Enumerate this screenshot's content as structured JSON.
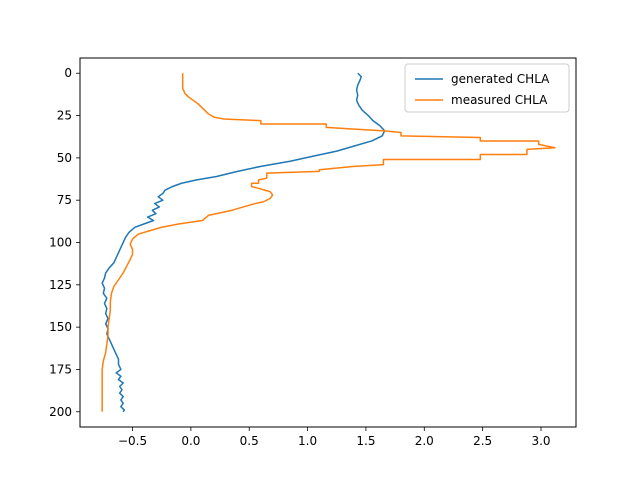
{
  "chart_data": {
    "type": "line",
    "title": "",
    "xlabel": "",
    "ylabel": "",
    "xlim": [
      -0.95,
      3.3
    ],
    "ylim": [
      209,
      -9
    ],
    "y_inverted": true,
    "xticks": [
      -0.5,
      0.0,
      0.5,
      1.0,
      1.5,
      2.0,
      2.5,
      3.0
    ],
    "xtick_labels": [
      "−0.5",
      "0.0",
      "0.5",
      "1.0",
      "1.5",
      "2.0",
      "2.5",
      "3.0"
    ],
    "yticks": [
      0,
      25,
      50,
      75,
      100,
      125,
      150,
      175,
      200
    ],
    "ytick_labels": [
      "0",
      "25",
      "50",
      "75",
      "100",
      "125",
      "150",
      "175",
      "200"
    ],
    "grid": false,
    "legend_position": "upper-right",
    "series": [
      {
        "name": "generated CHLA",
        "color": "#1f77b4",
        "points": [
          [
            1.43,
            0
          ],
          [
            1.46,
            2
          ],
          [
            1.45,
            4
          ],
          [
            1.43,
            7
          ],
          [
            1.42,
            10
          ],
          [
            1.43,
            13
          ],
          [
            1.42,
            16
          ],
          [
            1.44,
            19
          ],
          [
            1.47,
            22
          ],
          [
            1.52,
            25
          ],
          [
            1.56,
            28
          ],
          [
            1.62,
            31
          ],
          [
            1.66,
            34
          ],
          [
            1.64,
            37
          ],
          [
            1.55,
            40
          ],
          [
            1.4,
            43
          ],
          [
            1.25,
            46
          ],
          [
            1.05,
            49
          ],
          [
            0.85,
            52
          ],
          [
            0.6,
            55
          ],
          [
            0.4,
            58
          ],
          [
            0.22,
            61
          ],
          [
            0.05,
            63
          ],
          [
            -0.08,
            65
          ],
          [
            -0.16,
            67
          ],
          [
            -0.22,
            69
          ],
          [
            -0.24,
            71
          ],
          [
            -0.28,
            73
          ],
          [
            -0.24,
            75
          ],
          [
            -0.31,
            77
          ],
          [
            -0.27,
            79
          ],
          [
            -0.33,
            81
          ],
          [
            -0.3,
            83
          ],
          [
            -0.37,
            85
          ],
          [
            -0.32,
            87
          ],
          [
            -0.4,
            89
          ],
          [
            -0.48,
            91
          ],
          [
            -0.53,
            94
          ],
          [
            -0.56,
            97
          ],
          [
            -0.58,
            100
          ],
          [
            -0.6,
            103
          ],
          [
            -0.62,
            106
          ],
          [
            -0.64,
            109
          ],
          [
            -0.66,
            112
          ],
          [
            -0.7,
            115
          ],
          [
            -0.73,
            118
          ],
          [
            -0.74,
            121
          ],
          [
            -0.76,
            124
          ],
          [
            -0.74,
            127
          ],
          [
            -0.75,
            130
          ],
          [
            -0.72,
            133
          ],
          [
            -0.74,
            136
          ],
          [
            -0.72,
            139
          ],
          [
            -0.73,
            142
          ],
          [
            -0.71,
            145
          ],
          [
            -0.73,
            148
          ],
          [
            -0.71,
            151
          ],
          [
            -0.72,
            154
          ],
          [
            -0.7,
            157
          ],
          [
            -0.68,
            160
          ],
          [
            -0.66,
            163
          ],
          [
            -0.64,
            166
          ],
          [
            -0.62,
            169
          ],
          [
            -0.62,
            172
          ],
          [
            -0.6,
            175
          ],
          [
            -0.64,
            177
          ],
          [
            -0.6,
            179
          ],
          [
            -0.62,
            181
          ],
          [
            -0.58,
            183
          ],
          [
            -0.61,
            185
          ],
          [
            -0.59,
            187
          ],
          [
            -0.61,
            189
          ],
          [
            -0.58,
            191
          ],
          [
            -0.6,
            193
          ],
          [
            -0.58,
            195
          ],
          [
            -0.6,
            197
          ],
          [
            -0.57,
            199
          ],
          [
            -0.58,
            200
          ]
        ]
      },
      {
        "name": "measured CHLA",
        "color": "#ff7f0e",
        "points": [
          [
            -0.07,
            0
          ],
          [
            -0.07,
            9
          ],
          [
            -0.05,
            12
          ],
          [
            -0.02,
            14
          ],
          [
            0.02,
            16
          ],
          [
            0.06,
            18
          ],
          [
            0.09,
            20
          ],
          [
            0.12,
            22
          ],
          [
            0.15,
            24
          ],
          [
            0.2,
            26
          ],
          [
            0.28,
            27
          ],
          [
            0.6,
            28
          ],
          [
            0.6,
            30
          ],
          [
            1.16,
            30
          ],
          [
            1.16,
            32
          ],
          [
            1.4,
            33
          ],
          [
            1.65,
            34
          ],
          [
            1.8,
            35
          ],
          [
            1.8,
            37
          ],
          [
            2.48,
            38
          ],
          [
            2.48,
            40
          ],
          [
            2.98,
            40
          ],
          [
            2.98,
            42
          ],
          [
            3.12,
            44
          ],
          [
            2.88,
            45
          ],
          [
            2.88,
            48
          ],
          [
            2.48,
            48
          ],
          [
            2.48,
            51
          ],
          [
            1.65,
            51
          ],
          [
            1.65,
            54
          ],
          [
            1.4,
            55
          ],
          [
            1.1,
            57
          ],
          [
            1.1,
            58
          ],
          [
            0.65,
            59
          ],
          [
            0.65,
            62
          ],
          [
            0.58,
            63
          ],
          [
            0.58,
            65
          ],
          [
            0.52,
            65
          ],
          [
            0.52,
            67
          ],
          [
            0.58,
            68
          ],
          [
            0.68,
            70
          ],
          [
            0.7,
            72
          ],
          [
            0.68,
            74
          ],
          [
            0.62,
            76
          ],
          [
            0.55,
            77
          ],
          [
            0.45,
            79
          ],
          [
            0.35,
            81
          ],
          [
            0.15,
            84
          ],
          [
            0.1,
            87
          ],
          [
            -0.1,
            89
          ],
          [
            -0.25,
            91
          ],
          [
            -0.35,
            93
          ],
          [
            -0.45,
            95
          ],
          [
            -0.5,
            98
          ],
          [
            -0.52,
            101
          ],
          [
            -0.5,
            104
          ],
          [
            -0.5,
            107
          ],
          [
            -0.52,
            110
          ],
          [
            -0.55,
            114
          ],
          [
            -0.58,
            118
          ],
          [
            -0.62,
            122
          ],
          [
            -0.66,
            126
          ],
          [
            -0.68,
            130
          ],
          [
            -0.69,
            135
          ],
          [
            -0.69,
            140
          ],
          [
            -0.7,
            145
          ],
          [
            -0.71,
            150
          ],
          [
            -0.71,
            155
          ],
          [
            -0.72,
            160
          ],
          [
            -0.73,
            165
          ],
          [
            -0.75,
            170
          ],
          [
            -0.76,
            175
          ],
          [
            -0.76,
            180
          ],
          [
            -0.76,
            185
          ],
          [
            -0.76,
            190
          ],
          [
            -0.76,
            195
          ],
          [
            -0.76,
            200
          ]
        ]
      }
    ]
  }
}
